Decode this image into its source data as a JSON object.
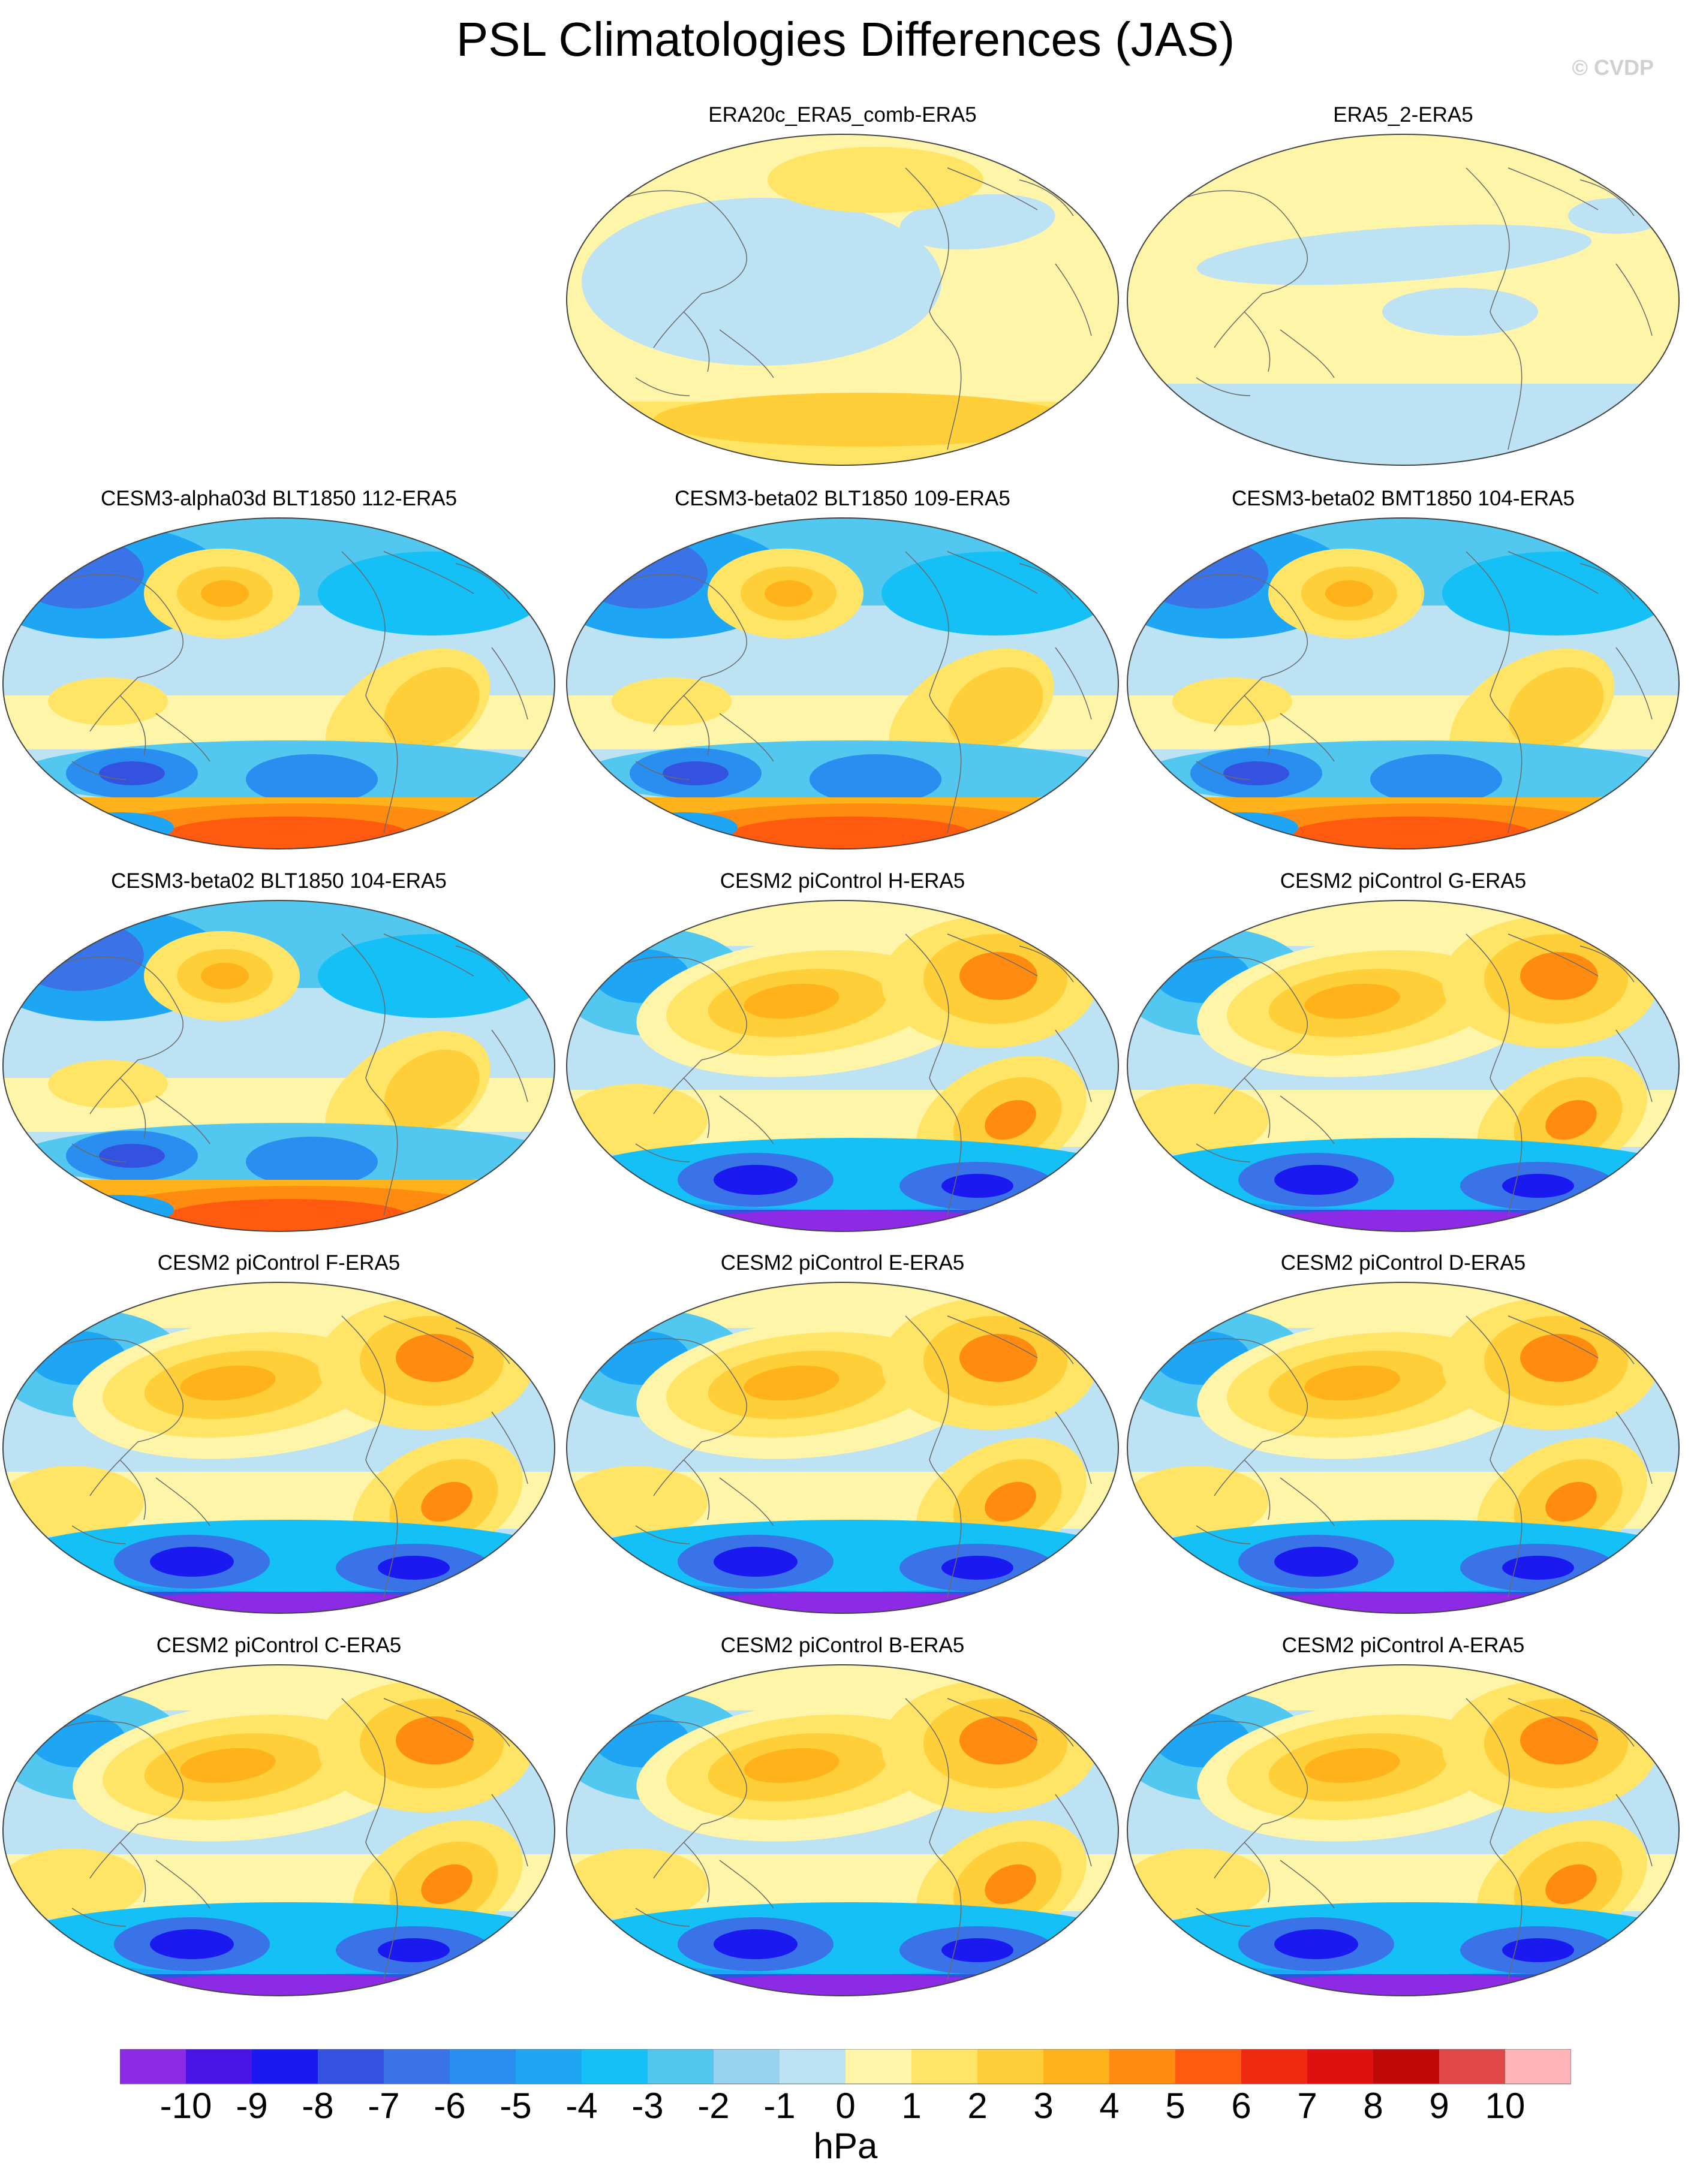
{
  "title": "PSL Climatologies Differences (JAS)",
  "credit": "© CVDP",
  "panels": [
    {
      "id": "p0",
      "label": "ERA20c_ERA5_comb-ERA5",
      "style": "reanalysis-a"
    },
    {
      "id": "p1",
      "label": "ERA5_2-ERA5",
      "style": "reanalysis-b"
    },
    {
      "id": "p2",
      "label": "CESM3-alpha03d BLT1850 112-ERA5",
      "style": "cesm3"
    },
    {
      "id": "p3",
      "label": "CESM3-beta02 BLT1850 109-ERA5",
      "style": "cesm3"
    },
    {
      "id": "p4",
      "label": "CESM3-beta02 BMT1850 104-ERA5",
      "style": "cesm3"
    },
    {
      "id": "p5",
      "label": "CESM3-beta02 BLT1850 104-ERA5",
      "style": "cesm3"
    },
    {
      "id": "p6",
      "label": "CESM2 piControl H-ERA5",
      "style": "cesm2"
    },
    {
      "id": "p7",
      "label": "CESM2 piControl G-ERA5",
      "style": "cesm2"
    },
    {
      "id": "p8",
      "label": "CESM2 piControl F-ERA5",
      "style": "cesm2"
    },
    {
      "id": "p9",
      "label": "CESM2 piControl E-ERA5",
      "style": "cesm2"
    },
    {
      "id": "p10",
      "label": "CESM2 piControl D-ERA5",
      "style": "cesm2"
    },
    {
      "id": "p11",
      "label": "CESM2 piControl C-ERA5",
      "style": "cesm2"
    },
    {
      "id": "p12",
      "label": "CESM2 piControl B-ERA5",
      "style": "cesm2"
    },
    {
      "id": "p13",
      "label": "CESM2 piControl A-ERA5",
      "style": "cesm2"
    }
  ],
  "colorbar": {
    "units": "hPa",
    "labels": [
      "-10",
      "-9",
      "-8",
      "-7",
      "-6",
      "-5",
      "-4",
      "-3",
      "-2",
      "-1",
      "0",
      "1",
      "2",
      "3",
      "4",
      "5",
      "6",
      "7",
      "8",
      "9",
      "10"
    ],
    "colors": [
      "#8c2ae6",
      "#4a14e6",
      "#1a1af0",
      "#3452e0",
      "#3a72e8",
      "#2a8ef0",
      "#1ea6f5",
      "#14c0f5",
      "#52c8f0",
      "#98d2ee",
      "#bde2f4",
      "#fff5a8",
      "#ffe466",
      "#ffcf3a",
      "#ffb21a",
      "#ff8c10",
      "#ff5a10",
      "#f02a10",
      "#e01010",
      "#c00a0a",
      "#e04848",
      "#ffb4b8"
    ]
  }
}
